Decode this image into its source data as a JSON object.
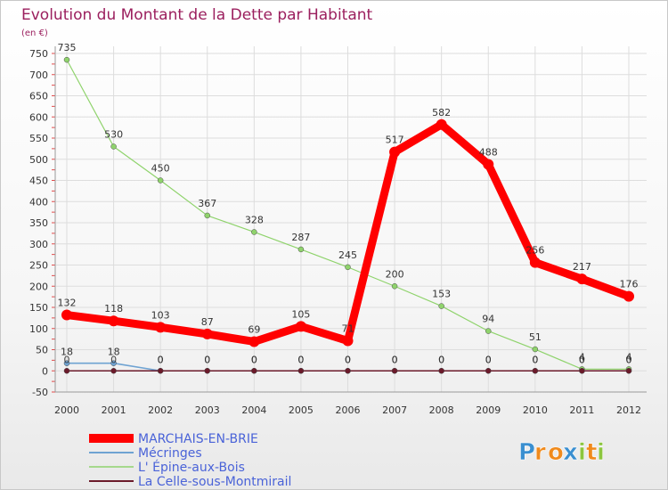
{
  "chart_data": {
    "type": "line",
    "title": "Evolution du Montant de la Dette par Habitant",
    "unit_label": "(en €)",
    "xlabel": "",
    "ylabel": "",
    "categories": [
      "2000",
      "2001",
      "2002",
      "2003",
      "2004",
      "2005",
      "2006",
      "2007",
      "2008",
      "2009",
      "2010",
      "2011",
      "2012"
    ],
    "ylim": [
      -50,
      750
    ],
    "yticks": [
      -50,
      0,
      50,
      100,
      150,
      200,
      250,
      300,
      350,
      400,
      450,
      500,
      550,
      600,
      650,
      700,
      750
    ],
    "grid": true,
    "legend_position": "bottom-left",
    "series": [
      {
        "name": "MARCHAIS-EN-BRIE",
        "color": "#ff0000",
        "values": [
          132,
          118,
          103,
          87,
          69,
          105,
          71,
          517,
          582,
          488,
          256,
          217,
          176
        ],
        "labels": [
          "132",
          "118",
          "103",
          "87",
          "69",
          "105",
          "71",
          "517",
          "582",
          "488",
          "256",
          "217",
          "176"
        ]
      },
      {
        "name": "Mécringes",
        "color": "#6fa3d2",
        "values": [
          18,
          18,
          0,
          0,
          0,
          0,
          0,
          0,
          0,
          0,
          0,
          0,
          0
        ],
        "labels": [
          "18",
          "18",
          "0",
          "0",
          "0",
          "0",
          "0",
          "0",
          "0",
          "0",
          "0",
          "0",
          "0"
        ]
      },
      {
        "name": "L' Épine-aux-Bois",
        "color": "#8fd36c",
        "values": [
          735,
          530,
          450,
          367,
          328,
          287,
          245,
          200,
          153,
          94,
          51,
          4,
          4
        ],
        "labels": [
          "735",
          "530",
          "450",
          "367",
          "328",
          "287",
          "245",
          "200",
          "153",
          "94",
          "51",
          "4",
          "4"
        ]
      },
      {
        "name": "La Celle-sous-Montmirail",
        "color": "#6b1a2a",
        "values": [
          0,
          0,
          0,
          0,
          0,
          0,
          0,
          0,
          0,
          0,
          0,
          0,
          0
        ],
        "labels": [
          "0",
          "0",
          "0",
          "0",
          "0",
          "0",
          "0",
          "0",
          "0",
          "0",
          "0",
          "0",
          "0"
        ]
      }
    ]
  },
  "brand": {
    "letters": [
      "P",
      "r",
      "o",
      "x",
      "i",
      "t",
      "i"
    ],
    "colors": [
      "#3a8fd0",
      "#f08a1c",
      "#f08a1c",
      "#3a8fd0",
      "#8cc63f",
      "#f08a1c",
      "#8cc63f"
    ]
  }
}
